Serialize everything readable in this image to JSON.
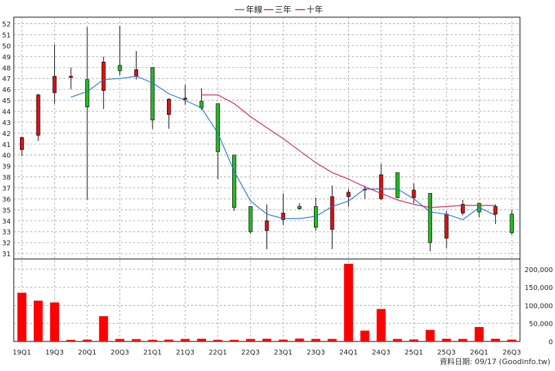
{
  "chart_data": {
    "type": "candlestick",
    "legend": [
      {
        "label": "年線",
        "color": "#1f77d0"
      },
      {
        "label": "三年",
        "color": "#cc2255"
      },
      {
        "label": "十年",
        "color": "#cc2255"
      }
    ],
    "colors": {
      "up": "#dd1111",
      "down": "#22bb22",
      "volume": "#ff0000",
      "grid": "#999999"
    },
    "x_labels": [
      "19Q1",
      "19Q3",
      "20Q1",
      "20Q3",
      "21Q1",
      "21Q3",
      "22Q1",
      "22Q3",
      "23Q1",
      "23Q3",
      "24Q1",
      "24Q3",
      "25Q1",
      "25Q3",
      "26Q1",
      "26Q3"
    ],
    "price_axis": {
      "min": 31,
      "max": 52,
      "ticks": [
        31,
        32,
        33,
        34,
        35,
        36,
        37,
        38,
        39,
        40,
        41,
        42,
        43,
        44,
        45,
        46,
        47,
        48,
        49,
        50,
        51,
        52
      ]
    },
    "volume_axis": {
      "max": 200000,
      "ticks": [
        0,
        50000,
        100000,
        150000,
        200000
      ],
      "tick_labels": [
        "0",
        "50,000",
        "100,000",
        "150,000",
        "200,000"
      ]
    },
    "candles": [
      {
        "o": 40.5,
        "h": 41.7,
        "l": 39.9,
        "c": 41.6
      },
      {
        "o": 41.8,
        "h": 45.6,
        "l": 41.3,
        "c": 45.5
      },
      {
        "o": 45.7,
        "h": 50.1,
        "l": 44.7,
        "c": 47.2
      },
      {
        "o": 47.1,
        "h": 48.0,
        "l": 46.0,
        "c": 47.2
      },
      {
        "o": 46.9,
        "h": 51.7,
        "l": 35.9,
        "c": 44.4
      },
      {
        "o": 45.9,
        "h": 49.0,
        "l": 44.2,
        "c": 48.5
      },
      {
        "o": 48.2,
        "h": 51.8,
        "l": 47.3,
        "c": 47.7
      },
      {
        "o": 47.2,
        "h": 49.5,
        "l": 46.9,
        "c": 47.8
      },
      {
        "o": 48.0,
        "h": 48.0,
        "l": 42.4,
        "c": 43.2
      },
      {
        "o": 43.7,
        "h": 45.2,
        "l": 42.4,
        "c": 45.1
      },
      {
        "o": 45.1,
        "h": 46.4,
        "l": 44.6,
        "c": 45.2
      },
      {
        "o": 44.9,
        "h": 46.1,
        "l": 44.1,
        "c": 44.3
      },
      {
        "o": 44.7,
        "h": 44.7,
        "l": 37.8,
        "c": 40.3
      },
      {
        "o": 40.0,
        "h": 40.0,
        "l": 34.9,
        "c": 35.2
      },
      {
        "o": 35.3,
        "h": 35.3,
        "l": 32.8,
        "c": 33.0
      },
      {
        "o": 33.1,
        "h": 35.5,
        "l": 31.4,
        "c": 34.0
      },
      {
        "o": 34.1,
        "h": 36.5,
        "l": 33.6,
        "c": 34.7
      },
      {
        "o": 35.3,
        "h": 35.6,
        "l": 35.0,
        "c": 35.1
      },
      {
        "o": 35.3,
        "h": 36.1,
        "l": 33.1,
        "c": 33.4
      },
      {
        "o": 33.2,
        "h": 37.2,
        "l": 31.4,
        "c": 36.2
      },
      {
        "o": 36.2,
        "h": 36.9,
        "l": 35.3,
        "c": 36.6
      },
      {
        "o": 36.8,
        "h": 37.2,
        "l": 36.0,
        "c": 36.9
      },
      {
        "o": 36.0,
        "h": 39.2,
        "l": 35.9,
        "c": 38.2
      },
      {
        "o": 38.4,
        "h": 38.4,
        "l": 36.1,
        "c": 36.1
      },
      {
        "o": 36.1,
        "h": 37.4,
        "l": 35.6,
        "c": 36.8
      },
      {
        "o": 36.5,
        "h": 36.5,
        "l": 31.2,
        "c": 32.0
      },
      {
        "o": 32.4,
        "h": 34.9,
        "l": 31.5,
        "c": 34.6
      },
      {
        "o": 34.7,
        "h": 35.9,
        "l": 34.5,
        "c": 35.5
      },
      {
        "o": 35.6,
        "h": 35.6,
        "l": 34.3,
        "c": 34.8
      },
      {
        "o": 34.6,
        "h": 35.5,
        "l": 33.7,
        "c": 35.3
      },
      {
        "o": 34.6,
        "h": 35.0,
        "l": 32.7,
        "c": 32.9
      }
    ],
    "volume": [
      135000,
      113000,
      108000,
      4500,
      5000,
      70000,
      7000,
      6500,
      4500,
      5000,
      7000,
      7500,
      4500,
      4500,
      7000,
      7500,
      5000,
      8000,
      7000,
      7000,
      215000,
      30000,
      90000,
      7000,
      5500,
      32000,
      7500,
      7000,
      40000,
      7500,
      5000
    ],
    "ma_year": [
      null,
      null,
      null,
      45.3,
      45.8,
      46.9,
      47.0,
      47.2,
      46.6,
      45.6,
      45.0,
      44.3,
      42.0,
      38.5,
      35.8,
      34.6,
      34.2,
      34.2,
      34.4,
      35.3,
      35.8,
      36.9,
      36.9,
      36.9,
      36.0,
      34.8,
      34.6,
      34.1,
      35.2,
      34.5,
      null
    ],
    "ma_3year": [
      null,
      null,
      null,
      null,
      null,
      null,
      null,
      null,
      null,
      null,
      null,
      45.5,
      45.5,
      44.7,
      43.5,
      42.5,
      41.5,
      40.4,
      39.3,
      38.4,
      37.8,
      37.1,
      36.5,
      35.9,
      35.5,
      35.2,
      35.3,
      35.4,
      35.4,
      35.4,
      null
    ],
    "footer": "資料日期: 09/17  (Goodinfo.tw)"
  }
}
